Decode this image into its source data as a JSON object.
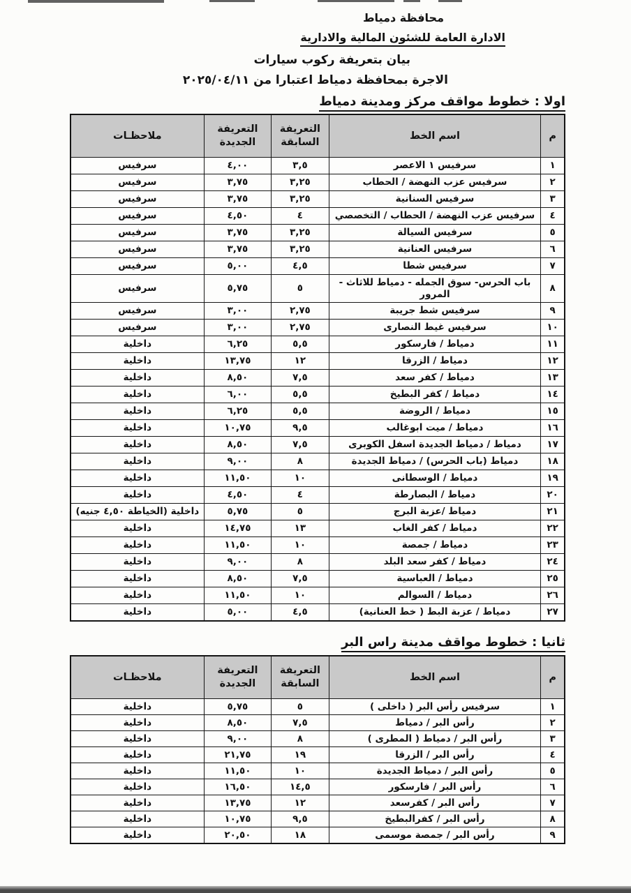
{
  "header": {
    "org": "محافظة دمياط",
    "dept": "الادارة العامة للشئون المالية والادارية",
    "subject": "بيان بتعريفة ركوب سيارات",
    "effective": "الاجرة بمحافظة دمياط اعتبارا من ٢٠٢٥/٠٤/١١"
  },
  "colors": {
    "paper": "#fcfcfa",
    "table_header_bg": "#c9c9c9",
    "border": "#161616",
    "text": "#131313"
  },
  "sections": [
    {
      "title": "اولا : خطوط مواقف مركز ومدينة دمياط",
      "columns": [
        "م",
        "اسم الخط",
        "التعريفة السابقة",
        "التعريفة الجديدة",
        "ملاحظـات"
      ],
      "rows": [
        [
          "١",
          "سرفيس ١ الاعصر",
          "٣,٥",
          "٤,٠٠",
          "سرفيس"
        ],
        [
          "٢",
          "سرفيس عزب النهضة / الحطاب",
          "٣,٢٥",
          "٣,٧٥",
          "سرفيس"
        ],
        [
          "٣",
          "سرفيس السنانية",
          "٣,٢٥",
          "٣,٧٥",
          "سرفيس"
        ],
        [
          "٤",
          "سرفيس عزب النهضة / الحطاب / التخصصي",
          "٤",
          "٤,٥٠",
          "سرفيس"
        ],
        [
          "٥",
          "سرفيس السيالة",
          "٣,٢٥",
          "٣,٧٥",
          "سرفيس"
        ],
        [
          "٦",
          "سرفيس العنانية",
          "٣,٢٥",
          "٣,٧٥",
          "سرفيس"
        ],
        [
          "٧",
          "سرفيس شطا",
          "٤,٥",
          "٥,٠٠",
          "سرفيس"
        ],
        [
          "٨",
          "باب الحرس- سوق الجمله - دمياط للاثاث - المرور",
          "٥",
          "٥,٧٥",
          "سرفيس"
        ],
        [
          "٩",
          "سرفيس شط جريبة",
          "٢,٧٥",
          "٣,٠٠",
          "سرفيس"
        ],
        [
          "١٠",
          "سرفيس غيط النصارى",
          "٢,٧٥",
          "٣,٠٠",
          "سرفيس"
        ],
        [
          "١١",
          "دمياط / فارسكور",
          "٥,٥",
          "٦,٢٥",
          "داخلية"
        ],
        [
          "١٢",
          "دمياط / الزرقا",
          "١٢",
          "١٣,٧٥",
          "داخلية"
        ],
        [
          "١٣",
          "دمياط / كفر سعد",
          "٧,٥",
          "٨,٥٠",
          "داخلية"
        ],
        [
          "١٤",
          "دمياط / كفر البطيخ",
          "٥,٥",
          "٦,٠٠",
          "داخلية"
        ],
        [
          "١٥",
          "دمياط / الروضة",
          "٥,٥",
          "٦,٢٥",
          "داخلية"
        ],
        [
          "١٦",
          "دمياط / ميت ابوغالب",
          "٩,٥",
          "١٠,٧٥",
          "داخلية"
        ],
        [
          "١٧",
          "دمياط / دمياط الجديدة اسفل الكوبرى",
          "٧,٥",
          "٨,٥٠",
          "داخلية"
        ],
        [
          "١٨",
          "دمياط (باب الحرس) / دمياط الجديدة",
          "٨",
          "٩,٠٠",
          "داخلية"
        ],
        [
          "١٩",
          "دمياط / الوسطانى",
          "١٠",
          "١١,٥٠",
          "داخلية"
        ],
        [
          "٢٠",
          "دمياط / البصارطة",
          "٤",
          "٤,٥٠",
          "داخلية"
        ],
        [
          "٢١",
          "دمياط /عزبة البرج",
          "٥",
          "٥,٧٥",
          "داخلية (الخياطة ٤,٥٠ جنيه)"
        ],
        [
          "٢٢",
          "دمياط / كفر الغاب",
          "١٣",
          "١٤,٧٥",
          "داخلية"
        ],
        [
          "٢٣",
          "دمياط / جمصة",
          "١٠",
          "١١,٥٠",
          "داخلية"
        ],
        [
          "٢٤",
          "دمياط / كفر سعد البلد",
          "٨",
          "٩,٠٠",
          "داخلية"
        ],
        [
          "٢٥",
          "دمياط / العباسية",
          "٧,٥",
          "٨,٥٠",
          "داخلية"
        ],
        [
          "٢٦",
          "دمياط / السوالم",
          "١٠",
          "١١,٥٠",
          "داخلية"
        ],
        [
          "٢٧",
          "دمياط / عزبة البط ( خط العنانية)",
          "٤,٥",
          "٥,٠٠",
          "داخلية"
        ]
      ]
    },
    {
      "title": "ثانيا : خطوط مواقف مدينة راس البر",
      "columns": [
        "م",
        "اسم الخط",
        "التعريفة السابقة",
        "التعريفة الجديدة",
        "ملاحظـات"
      ],
      "rows": [
        [
          "١",
          "سرفيس رأس البر ( داخلى )",
          "٥",
          "٥,٧٥",
          "داخلية"
        ],
        [
          "٢",
          "رأس البر / دمياط",
          "٧,٥",
          "٨,٥٠",
          "داخلية"
        ],
        [
          "٣",
          "رأس البر / دمياط ( المطرى )",
          "٨",
          "٩,٠٠",
          "داخلية"
        ],
        [
          "٤",
          "رأس البر / الزرقا",
          "١٩",
          "٢١,٧٥",
          "داخلية"
        ],
        [
          "٥",
          "رأس البر / دمياط الجديدة",
          "١٠",
          "١١,٥٠",
          "داخلية"
        ],
        [
          "٦",
          "رأس البر / فارسكور",
          "١٤,٥",
          "١٦,٥٠",
          "داخلية"
        ],
        [
          "٧",
          "رأس البر / كفرسعد",
          "١٢",
          "١٣,٧٥",
          "داخلية"
        ],
        [
          "٨",
          "رأس البر / كفرالبطيخ",
          "٩,٥",
          "١٠,٧٥",
          "داخلية"
        ],
        [
          "٩",
          "رأس البر / جمصة موسمى",
          "١٨",
          "٢٠,٥٠",
          "داخلية"
        ]
      ]
    }
  ]
}
